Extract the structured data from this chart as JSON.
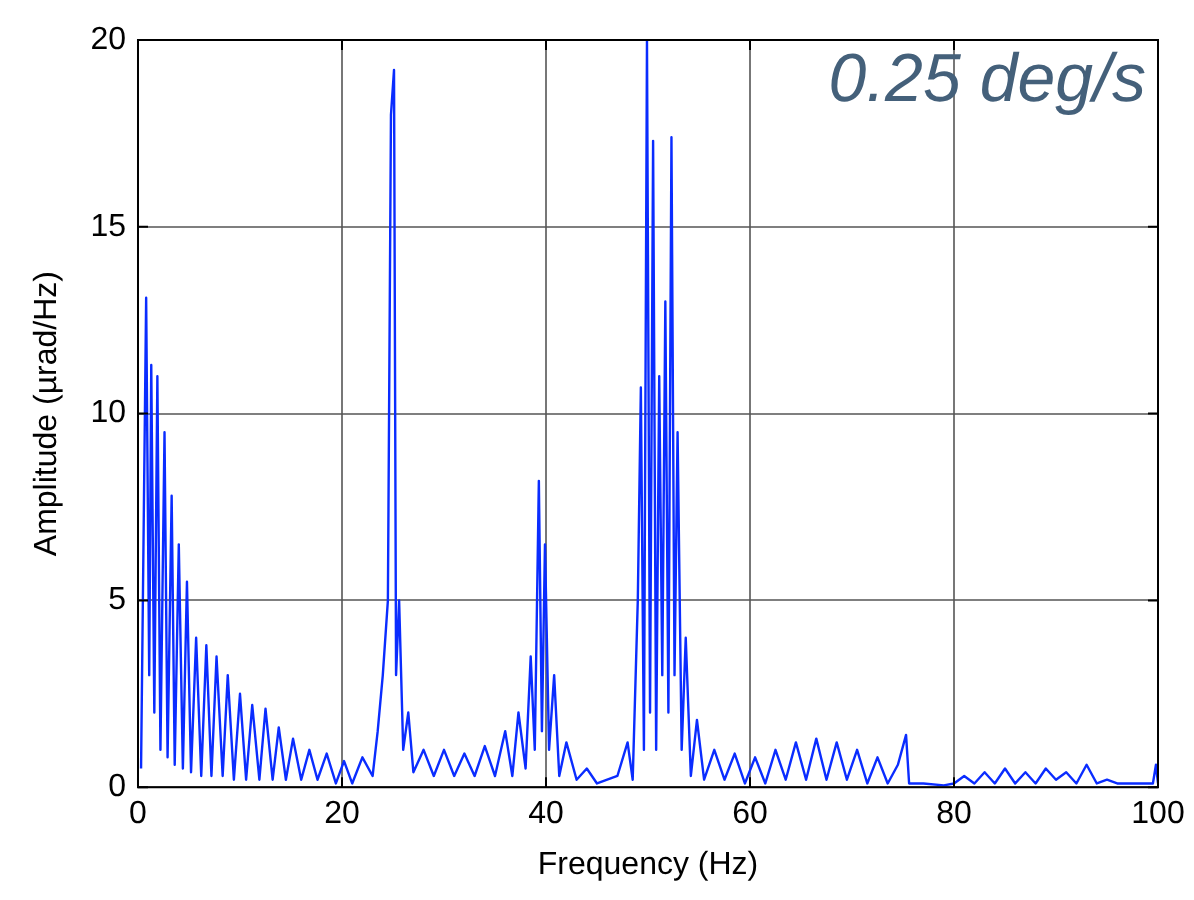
{
  "chart_data": {
    "type": "line",
    "xlabel": "Frequency (Hz)",
    "ylabel": "Amplitude (µrad/Hz)",
    "annotations": [
      "0.25 deg/s"
    ],
    "xlim": [
      0,
      100
    ],
    "xticks": [
      0,
      20,
      40,
      60,
      80,
      100
    ],
    "ylim": [
      0,
      20
    ],
    "yticks": [
      0,
      5,
      10,
      15,
      20
    ],
    "grid": true,
    "legend": false,
    "marker": "none",
    "line_style": "solid",
    "series": [
      {
        "color": "#0a2cff",
        "x": [
          0.3,
          0.8,
          1.1,
          1.3,
          1.6,
          1.9,
          2.2,
          2.6,
          2.9,
          3.3,
          3.6,
          4,
          4.4,
          4.8,
          5.2,
          5.7,
          6.2,
          6.7,
          7.2,
          7.7,
          8.3,
          8.8,
          9.4,
          10,
          10.6,
          11.2,
          11.9,
          12.5,
          13.2,
          13.8,
          14.5,
          15.2,
          16,
          16.8,
          17.6,
          18.5,
          19.4,
          20.2,
          21,
          22,
          23,
          23.5,
          24,
          24.5,
          24.8,
          25.1,
          25.3,
          25.6,
          26,
          26.5,
          27,
          28,
          29,
          30,
          31,
          32,
          33,
          34,
          35,
          36,
          36.7,
          37.3,
          38,
          38.5,
          38.9,
          39.3,
          39.6,
          39.9,
          40.3,
          40.8,
          41.3,
          42,
          43,
          44,
          45,
          46,
          47,
          48,
          48.5,
          49,
          49.3,
          49.6,
          49.9,
          50.2,
          50.5,
          50.8,
          51.1,
          51.4,
          51.7,
          52,
          52.3,
          52.6,
          52.9,
          53.3,
          53.7,
          54.2,
          54.8,
          55.5,
          56.5,
          57.5,
          58.5,
          59.5,
          60.5,
          61.5,
          62.5,
          63.5,
          64.5,
          65.5,
          66.5,
          67.5,
          68.5,
          69.5,
          70.5,
          71.5,
          72.5,
          73.5,
          74.5,
          75.3,
          75.6,
          77,
          79,
          80,
          81,
          82,
          83,
          84,
          85,
          86,
          87,
          88,
          89,
          90,
          91,
          92,
          93,
          94,
          95,
          96,
          97,
          98,
          99.5,
          99.8,
          100
        ],
        "values": [
          0.5,
          13.1,
          3,
          11.3,
          2,
          11,
          1,
          9.5,
          0.8,
          7.8,
          0.6,
          6.5,
          0.5,
          5.5,
          0.4,
          4,
          0.3,
          3.8,
          0.3,
          3.5,
          0.3,
          3,
          0.2,
          2.5,
          0.2,
          2.2,
          0.2,
          2.1,
          0.2,
          1.6,
          0.2,
          1.3,
          0.2,
          1,
          0.2,
          0.9,
          0.1,
          0.7,
          0.1,
          0.8,
          0.3,
          1.5,
          3,
          5,
          18,
          19.2,
          3,
          5,
          1,
          2,
          0.4,
          1,
          0.3,
          1,
          0.3,
          0.9,
          0.3,
          1.1,
          0.3,
          1.5,
          0.3,
          2,
          0.5,
          3.5,
          1,
          8.2,
          1.5,
          6.5,
          1,
          3,
          0.3,
          1.2,
          0.2,
          0.5,
          0.1,
          0.2,
          0.3,
          1.2,
          0.2,
          5,
          10.7,
          1,
          20,
          2,
          17.3,
          1,
          11,
          3,
          13,
          2,
          17.4,
          3,
          9.5,
          1,
          4,
          0.3,
          1.8,
          0.2,
          1,
          0.2,
          0.9,
          0.1,
          0.8,
          0.1,
          1,
          0.2,
          1.2,
          0.2,
          1.3,
          0.2,
          1.2,
          0.2,
          1,
          0.1,
          0.8,
          0.1,
          0.6,
          1.4,
          0.1,
          0.1,
          0.05,
          0.1,
          0.3,
          0.1,
          0.4,
          0.1,
          0.5,
          0.1,
          0.4,
          0.1,
          0.5,
          0.2,
          0.4,
          0.1,
          0.6,
          0.1,
          0.2,
          0.1,
          0.1,
          0.1,
          0.1,
          0.6,
          0.1
        ]
      }
    ]
  }
}
